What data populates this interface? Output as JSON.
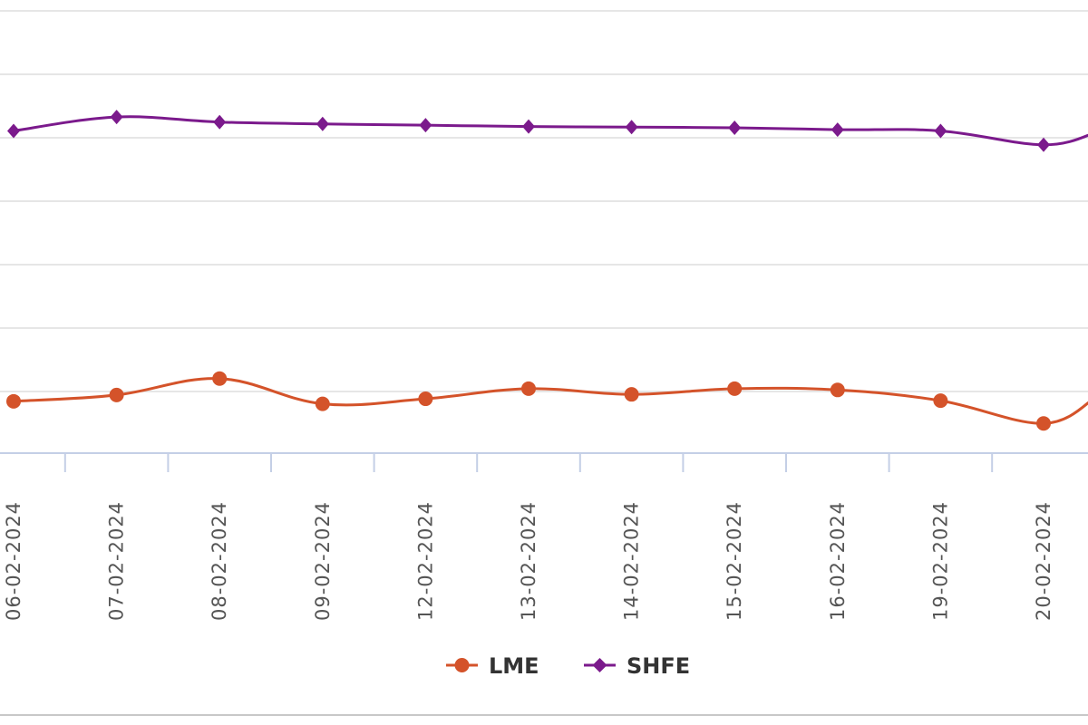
{
  "colors": {
    "lme": "#d4532a",
    "shfe": "#7b1a8c",
    "grid": "#e6e6e6",
    "axis": "#c4cfe6",
    "tick_text": "#555555",
    "legend_text": "#333333"
  },
  "chart_data": {
    "type": "line",
    "x": [
      "06-02-2024",
      "07-02-2024",
      "08-02-2024",
      "09-02-2024",
      "12-02-2024",
      "13-02-2024",
      "14-02-2024",
      "15-02-2024",
      "16-02-2024",
      "19-02-2024",
      "20-02-2024"
    ],
    "series": [
      {
        "name": "LME",
        "marker": "circle",
        "values": [
          2.82,
          2.92,
          3.18,
          2.78,
          2.86,
          3.02,
          2.93,
          3.02,
          3.0,
          2.83,
          2.47
        ]
      },
      {
        "name": "SHFE",
        "marker": "diamond",
        "values": [
          7.1,
          7.32,
          7.24,
          7.21,
          7.19,
          7.17,
          7.16,
          7.15,
          7.12,
          7.1,
          6.88
        ]
      }
    ],
    "y_range": [
      2.0,
      9.0
    ],
    "grid": true,
    "legend": "bottom-center"
  },
  "legend": {
    "items": [
      {
        "label": "LME",
        "series": "lme"
      },
      {
        "label": "SHFE",
        "series": "shfe"
      }
    ]
  }
}
